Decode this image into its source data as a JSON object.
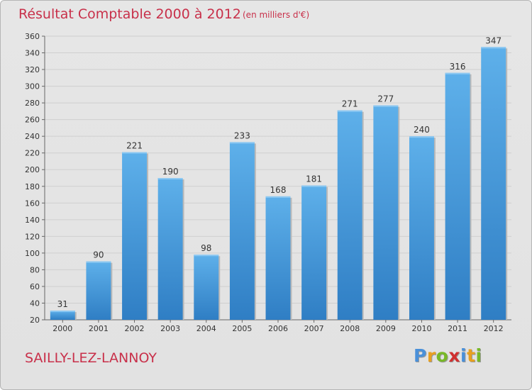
{
  "title": "Résultat Comptable 2000 à 2012",
  "subtitle": "(en milliers d'€)",
  "city": "SAILLY-LEZ-LANNOY",
  "logo": {
    "letters": [
      "P",
      "r",
      "o",
      "x",
      "i",
      "t",
      "i"
    ],
    "colors": [
      "#4a90d9",
      "#e8a020",
      "#78b828",
      "#d03030",
      "#4a90d9",
      "#e8a020",
      "#78b828"
    ]
  },
  "colors": {
    "bar": "#3a8ed4",
    "bar_light": "#5aaee8",
    "title": "#c8304a",
    "background": "#e4e4e4"
  },
  "chart_data": {
    "type": "bar",
    "title": "Résultat Comptable 2000 à 2012",
    "ylabel": "en milliers d'€",
    "xlabel": "",
    "categories": [
      "2000",
      "2001",
      "2002",
      "2003",
      "2004",
      "2005",
      "2006",
      "2007",
      "2008",
      "2009",
      "2010",
      "2011",
      "2012"
    ],
    "values": [
      31,
      90,
      221,
      190,
      98,
      233,
      168,
      181,
      271,
      277,
      240,
      316,
      347
    ],
    "ylim": [
      20,
      360
    ],
    "yticks": [
      20,
      40,
      60,
      80,
      100,
      120,
      140,
      160,
      180,
      200,
      220,
      240,
      260,
      280,
      300,
      320,
      340,
      360
    ],
    "grid": true
  }
}
